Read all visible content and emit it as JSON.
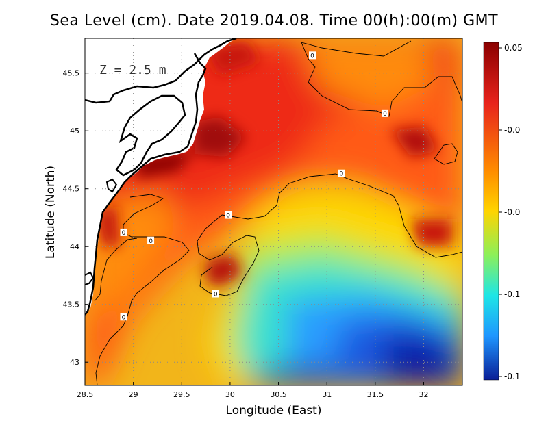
{
  "title": "Sea Level (cm). Date 2019.04.08. Time 00(h):00(m) GMT",
  "depth_label": "Z = 2.5 m",
  "chart_data": {
    "type": "heatmap",
    "xlabel": "Longitude (East)",
    "ylabel": "Latitude (North)",
    "xlim": [
      28.5,
      32.4
    ],
    "ylim": [
      42.8,
      45.8
    ],
    "x_ticks": [
      "28.5",
      "29",
      "29.5",
      "30",
      "30.5",
      "31",
      "31.5",
      "32"
    ],
    "x_tick_values": [
      28.5,
      29,
      29.5,
      30,
      30.5,
      31,
      31.5,
      32
    ],
    "y_ticks": [
      "43",
      "43.5",
      "44",
      "44.5",
      "45",
      "45.5"
    ],
    "y_tick_values": [
      43,
      43.5,
      44,
      44.5,
      45,
      45.5
    ],
    "grid": true,
    "colorbar": {
      "ticks": [
        "0.05",
        "-0.0",
        "-0.0",
        "-0.1",
        "-0.1"
      ],
      "colors": [
        "#8b0000",
        "#e8231c",
        "#ff8c00",
        "#ffd400",
        "#8cf05a",
        "#1ee6e6",
        "#1e96ff",
        "#0a1e96"
      ]
    },
    "contour_labels": [
      {
        "lon": 30.85,
        "lat": 45.65,
        "text": "0"
      },
      {
        "lon": 31.6,
        "lat": 45.15,
        "text": "0"
      },
      {
        "lon": 31.15,
        "lat": 44.63,
        "text": "0"
      },
      {
        "lon": 29.98,
        "lat": 44.27,
        "text": "0"
      },
      {
        "lon": 29.18,
        "lat": 44.05,
        "text": "0"
      },
      {
        "lon": 28.9,
        "lat": 44.12,
        "text": "0"
      },
      {
        "lon": 29.85,
        "lat": 43.59,
        "text": "0"
      },
      {
        "lon": 28.9,
        "lat": 43.39,
        "text": "0"
      }
    ]
  }
}
